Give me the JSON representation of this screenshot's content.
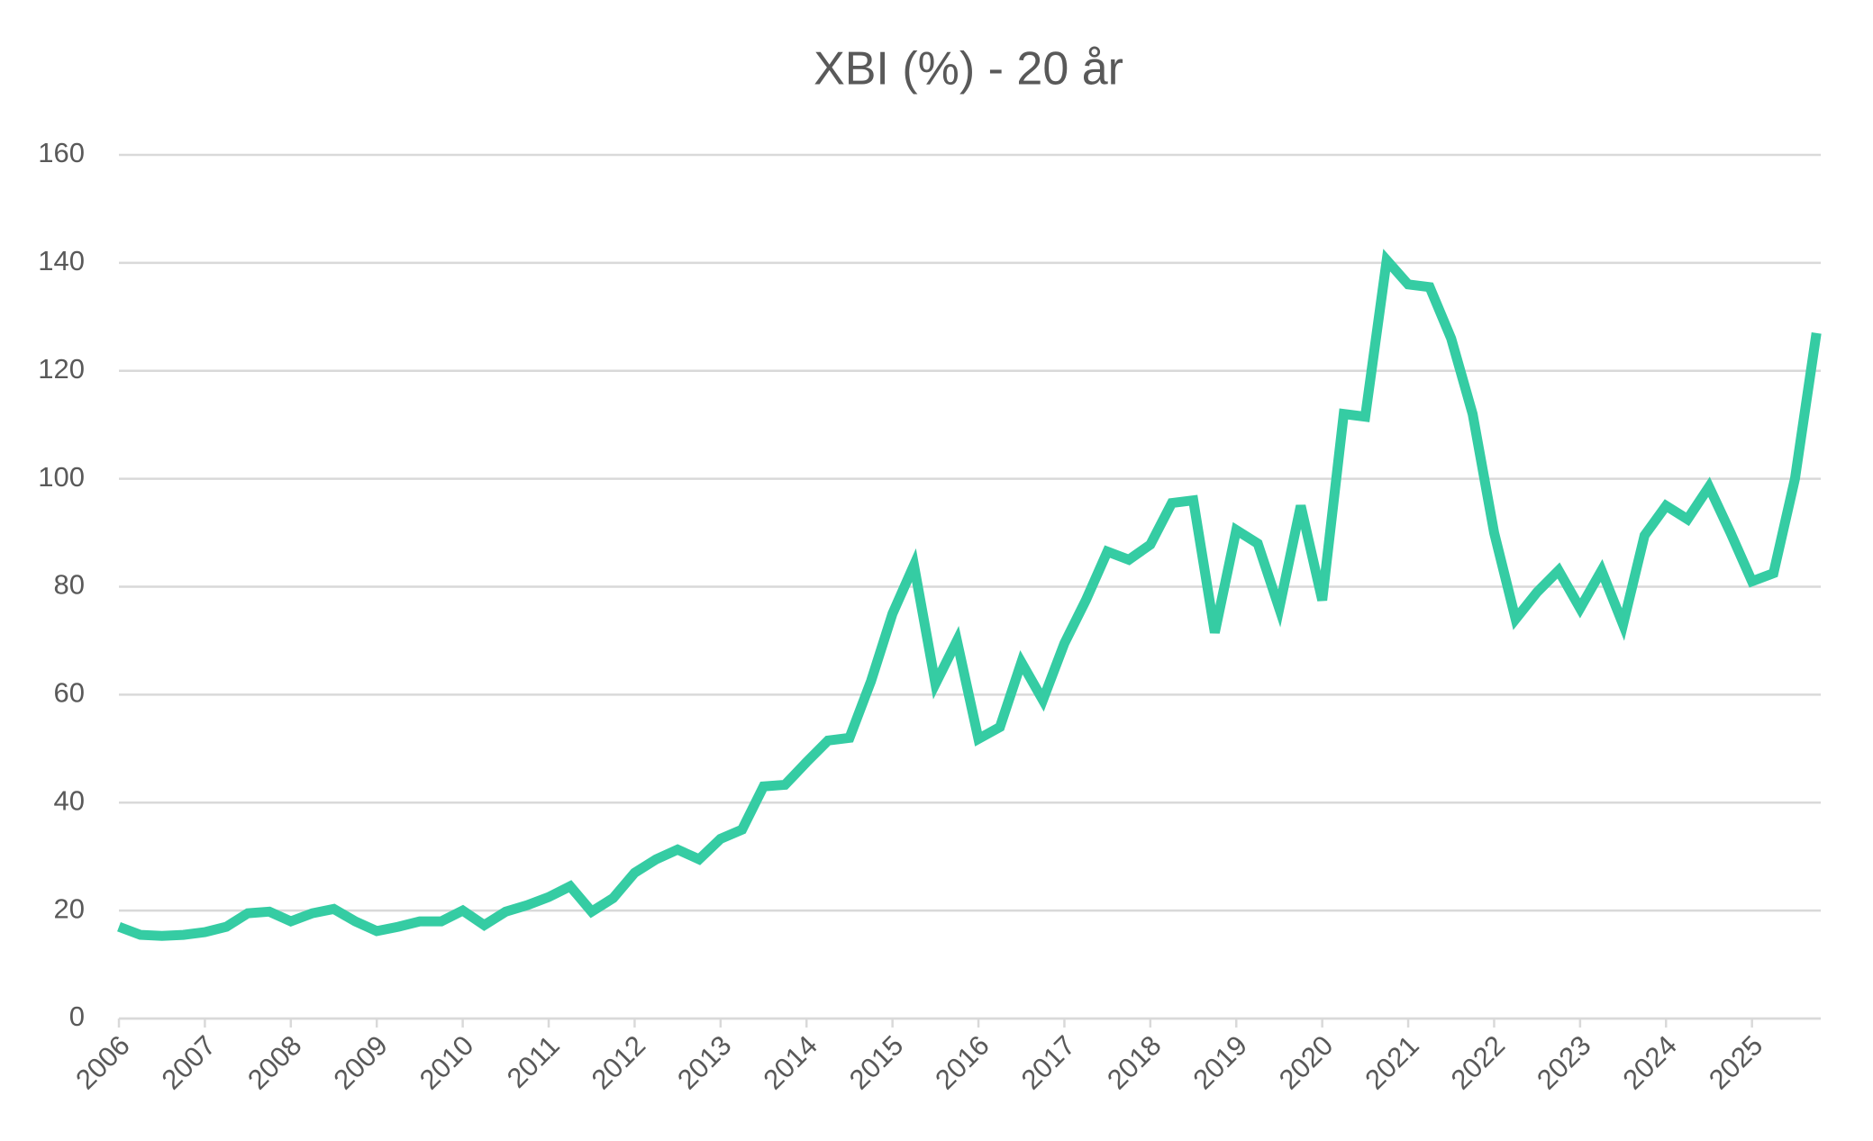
{
  "chart_data": {
    "type": "line",
    "title": "XBI (%) - 20 år",
    "categories": [
      "2006",
      null,
      null,
      null,
      "2007",
      null,
      null,
      null,
      "2008",
      null,
      null,
      null,
      "2009",
      null,
      null,
      null,
      "2010",
      null,
      null,
      null,
      "2011",
      null,
      null,
      null,
      "2012",
      null,
      null,
      null,
      "2013",
      null,
      null,
      null,
      "2014",
      null,
      null,
      null,
      "2015",
      null,
      null,
      null,
      "2016",
      null,
      null,
      null,
      "2017",
      null,
      null,
      null,
      "2018",
      null,
      null,
      null,
      "2019",
      null,
      null,
      null,
      "2020",
      null,
      null,
      null,
      "2021",
      null,
      null,
      null,
      "2022",
      null,
      null,
      null,
      "2023",
      null,
      null,
      null,
      "2024",
      null,
      null,
      null,
      "2025",
      null,
      null,
      null
    ],
    "values": [
      17,
      15.5,
      15.3,
      15.5,
      16,
      17,
      19.5,
      19.8,
      18,
      19.5,
      20.3,
      18,
      16.2,
      17,
      18,
      18,
      20,
      17.3,
      19.8,
      21,
      22.5,
      24.5,
      19.8,
      22.3,
      27,
      29.5,
      31.3,
      29.5,
      33.3,
      35,
      43,
      43.3,
      47.5,
      51.5,
      52,
      62.5,
      75,
      84,
      62,
      70,
      51.8,
      54,
      66,
      59,
      69.5,
      77.5,
      86.5,
      85,
      87.8,
      95.5,
      96,
      71.5,
      90.5,
      88,
      76,
      95,
      77.5,
      112,
      111.5,
      140.5,
      136,
      135.5,
      126,
      112,
      90,
      74,
      79,
      83,
      76,
      83,
      73,
      89.5,
      95,
      92.5,
      98.5,
      90,
      81,
      82.5,
      100,
      127
    ],
    "color": "#35cca3",
    "ylim": [
      0,
      160
    ],
    "yticks": [
      0,
      20,
      40,
      60,
      80,
      100,
      120,
      140,
      160
    ],
    "grid": true
  }
}
